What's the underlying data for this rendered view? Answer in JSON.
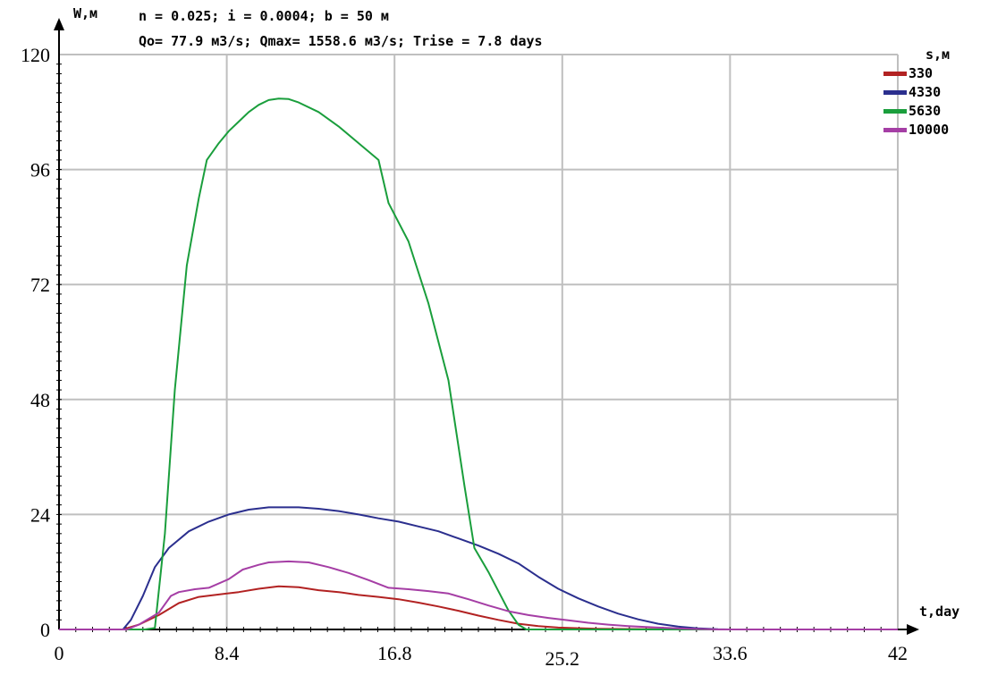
{
  "chart_data": {
    "type": "line",
    "title_line1": "n = 0.025; i = 0.0004; b = 50 м",
    "title_line2": "Qo= 77.9 м3/s; Qmax= 1558.6 м3/s; Trise = 7.8 days",
    "ylabel": "W,м",
    "xlabel": "t,day",
    "legend_title": "s,м",
    "legend_position": "right",
    "grid": true,
    "xlim": [
      0,
      42
    ],
    "ylim": [
      0,
      120
    ],
    "x_ticks": [
      "0",
      "8.4",
      "16.8",
      "25.2",
      "33.6",
      "42"
    ],
    "y_ticks": [
      "0",
      "24",
      "48",
      "72",
      "96",
      "120"
    ],
    "series": [
      {
        "name": "330",
        "color": "#b22222",
        "points": [
          [
            0,
            0
          ],
          [
            3.2,
            0
          ],
          [
            4,
            1
          ],
          [
            5,
            3
          ],
          [
            6,
            5.5
          ],
          [
            7,
            6.8
          ],
          [
            8,
            7.3
          ],
          [
            9,
            7.8
          ],
          [
            10,
            8.5
          ],
          [
            11,
            9
          ],
          [
            12,
            8.8
          ],
          [
            13,
            8.2
          ],
          [
            14,
            7.8
          ],
          [
            15,
            7.2
          ],
          [
            16,
            6.8
          ],
          [
            17,
            6.3
          ],
          [
            18,
            5.6
          ],
          [
            19,
            4.8
          ],
          [
            20,
            3.9
          ],
          [
            21,
            2.9
          ],
          [
            22,
            2.0
          ],
          [
            23,
            1.2
          ],
          [
            24,
            0.7
          ],
          [
            25,
            0.4
          ],
          [
            27,
            0.15
          ],
          [
            30,
            0.05
          ],
          [
            33,
            0
          ],
          [
            42,
            0
          ]
        ]
      },
      {
        "name": "4330",
        "color": "#2b2f8e",
        "points": [
          [
            0,
            0
          ],
          [
            3.2,
            0
          ],
          [
            3.6,
            2
          ],
          [
            4.2,
            7
          ],
          [
            4.8,
            13
          ],
          [
            5.5,
            17
          ],
          [
            6.5,
            20.5
          ],
          [
            7.5,
            22.5
          ],
          [
            8.5,
            24
          ],
          [
            9.5,
            25
          ],
          [
            10.5,
            25.5
          ],
          [
            12,
            25.5
          ],
          [
            13,
            25.2
          ],
          [
            14,
            24.7
          ],
          [
            15,
            24
          ],
          [
            16,
            23.2
          ],
          [
            17,
            22.5
          ],
          [
            18,
            21.5
          ],
          [
            19,
            20.5
          ],
          [
            20,
            19
          ],
          [
            21,
            17.5
          ],
          [
            22,
            15.8
          ],
          [
            23,
            13.8
          ],
          [
            24,
            11
          ],
          [
            25,
            8.5
          ],
          [
            26,
            6.5
          ],
          [
            27,
            4.8
          ],
          [
            28,
            3.3
          ],
          [
            29,
            2.1
          ],
          [
            30,
            1.2
          ],
          [
            31,
            0.6
          ],
          [
            32,
            0.25
          ],
          [
            33,
            0.05
          ],
          [
            33.6,
            0
          ],
          [
            42,
            0
          ]
        ]
      },
      {
        "name": "5630",
        "color": "#1a9e3c",
        "points": [
          [
            0,
            0
          ],
          [
            4.3,
            0
          ],
          [
            4.8,
            0.3
          ],
          [
            5.3,
            20
          ],
          [
            5.8,
            50
          ],
          [
            6.4,
            76
          ],
          [
            7,
            90
          ],
          [
            7.4,
            98
          ],
          [
            8,
            101.5
          ],
          [
            8.5,
            104
          ],
          [
            9,
            106
          ],
          [
            9.5,
            108
          ],
          [
            10,
            109.5
          ],
          [
            10.5,
            110.5
          ],
          [
            11,
            110.8
          ],
          [
            11.5,
            110.7
          ],
          [
            12,
            110
          ],
          [
            13,
            108
          ],
          [
            14,
            105
          ],
          [
            15,
            101.5
          ],
          [
            16,
            98
          ],
          [
            16.5,
            89
          ],
          [
            17.5,
            81
          ],
          [
            18.5,
            68
          ],
          [
            19.5,
            52
          ],
          [
            20.3,
            30
          ],
          [
            20.8,
            17
          ],
          [
            21.5,
            12
          ],
          [
            22,
            8
          ],
          [
            22.5,
            4
          ],
          [
            23,
            1
          ],
          [
            23.4,
            0
          ],
          [
            42,
            0
          ]
        ]
      },
      {
        "name": "10000",
        "color": "#a53ea5",
        "points": [
          [
            0,
            0
          ],
          [
            3.4,
            0
          ],
          [
            4,
            1
          ],
          [
            5,
            3.5
          ],
          [
            5.6,
            7
          ],
          [
            6,
            7.8
          ],
          [
            6.8,
            8.4
          ],
          [
            7.5,
            8.7
          ],
          [
            8.5,
            10.5
          ],
          [
            9.2,
            12.5
          ],
          [
            10,
            13.5
          ],
          [
            10.5,
            14
          ],
          [
            11.5,
            14.2
          ],
          [
            12.5,
            14
          ],
          [
            13.5,
            13
          ],
          [
            14.5,
            11.8
          ],
          [
            15.5,
            10.3
          ],
          [
            16.5,
            8.7
          ],
          [
            17.5,
            8.4
          ],
          [
            18.5,
            8.0
          ],
          [
            19.5,
            7.5
          ],
          [
            20.5,
            6.3
          ],
          [
            21.5,
            5
          ],
          [
            22.5,
            3.8
          ],
          [
            23.5,
            3
          ],
          [
            24.5,
            2.4
          ],
          [
            25.5,
            1.9
          ],
          [
            26.5,
            1.4
          ],
          [
            27.5,
            1
          ],
          [
            28.5,
            0.7
          ],
          [
            30,
            0.4
          ],
          [
            31.5,
            0.15
          ],
          [
            33,
            0
          ],
          [
            42,
            0
          ]
        ]
      }
    ]
  }
}
